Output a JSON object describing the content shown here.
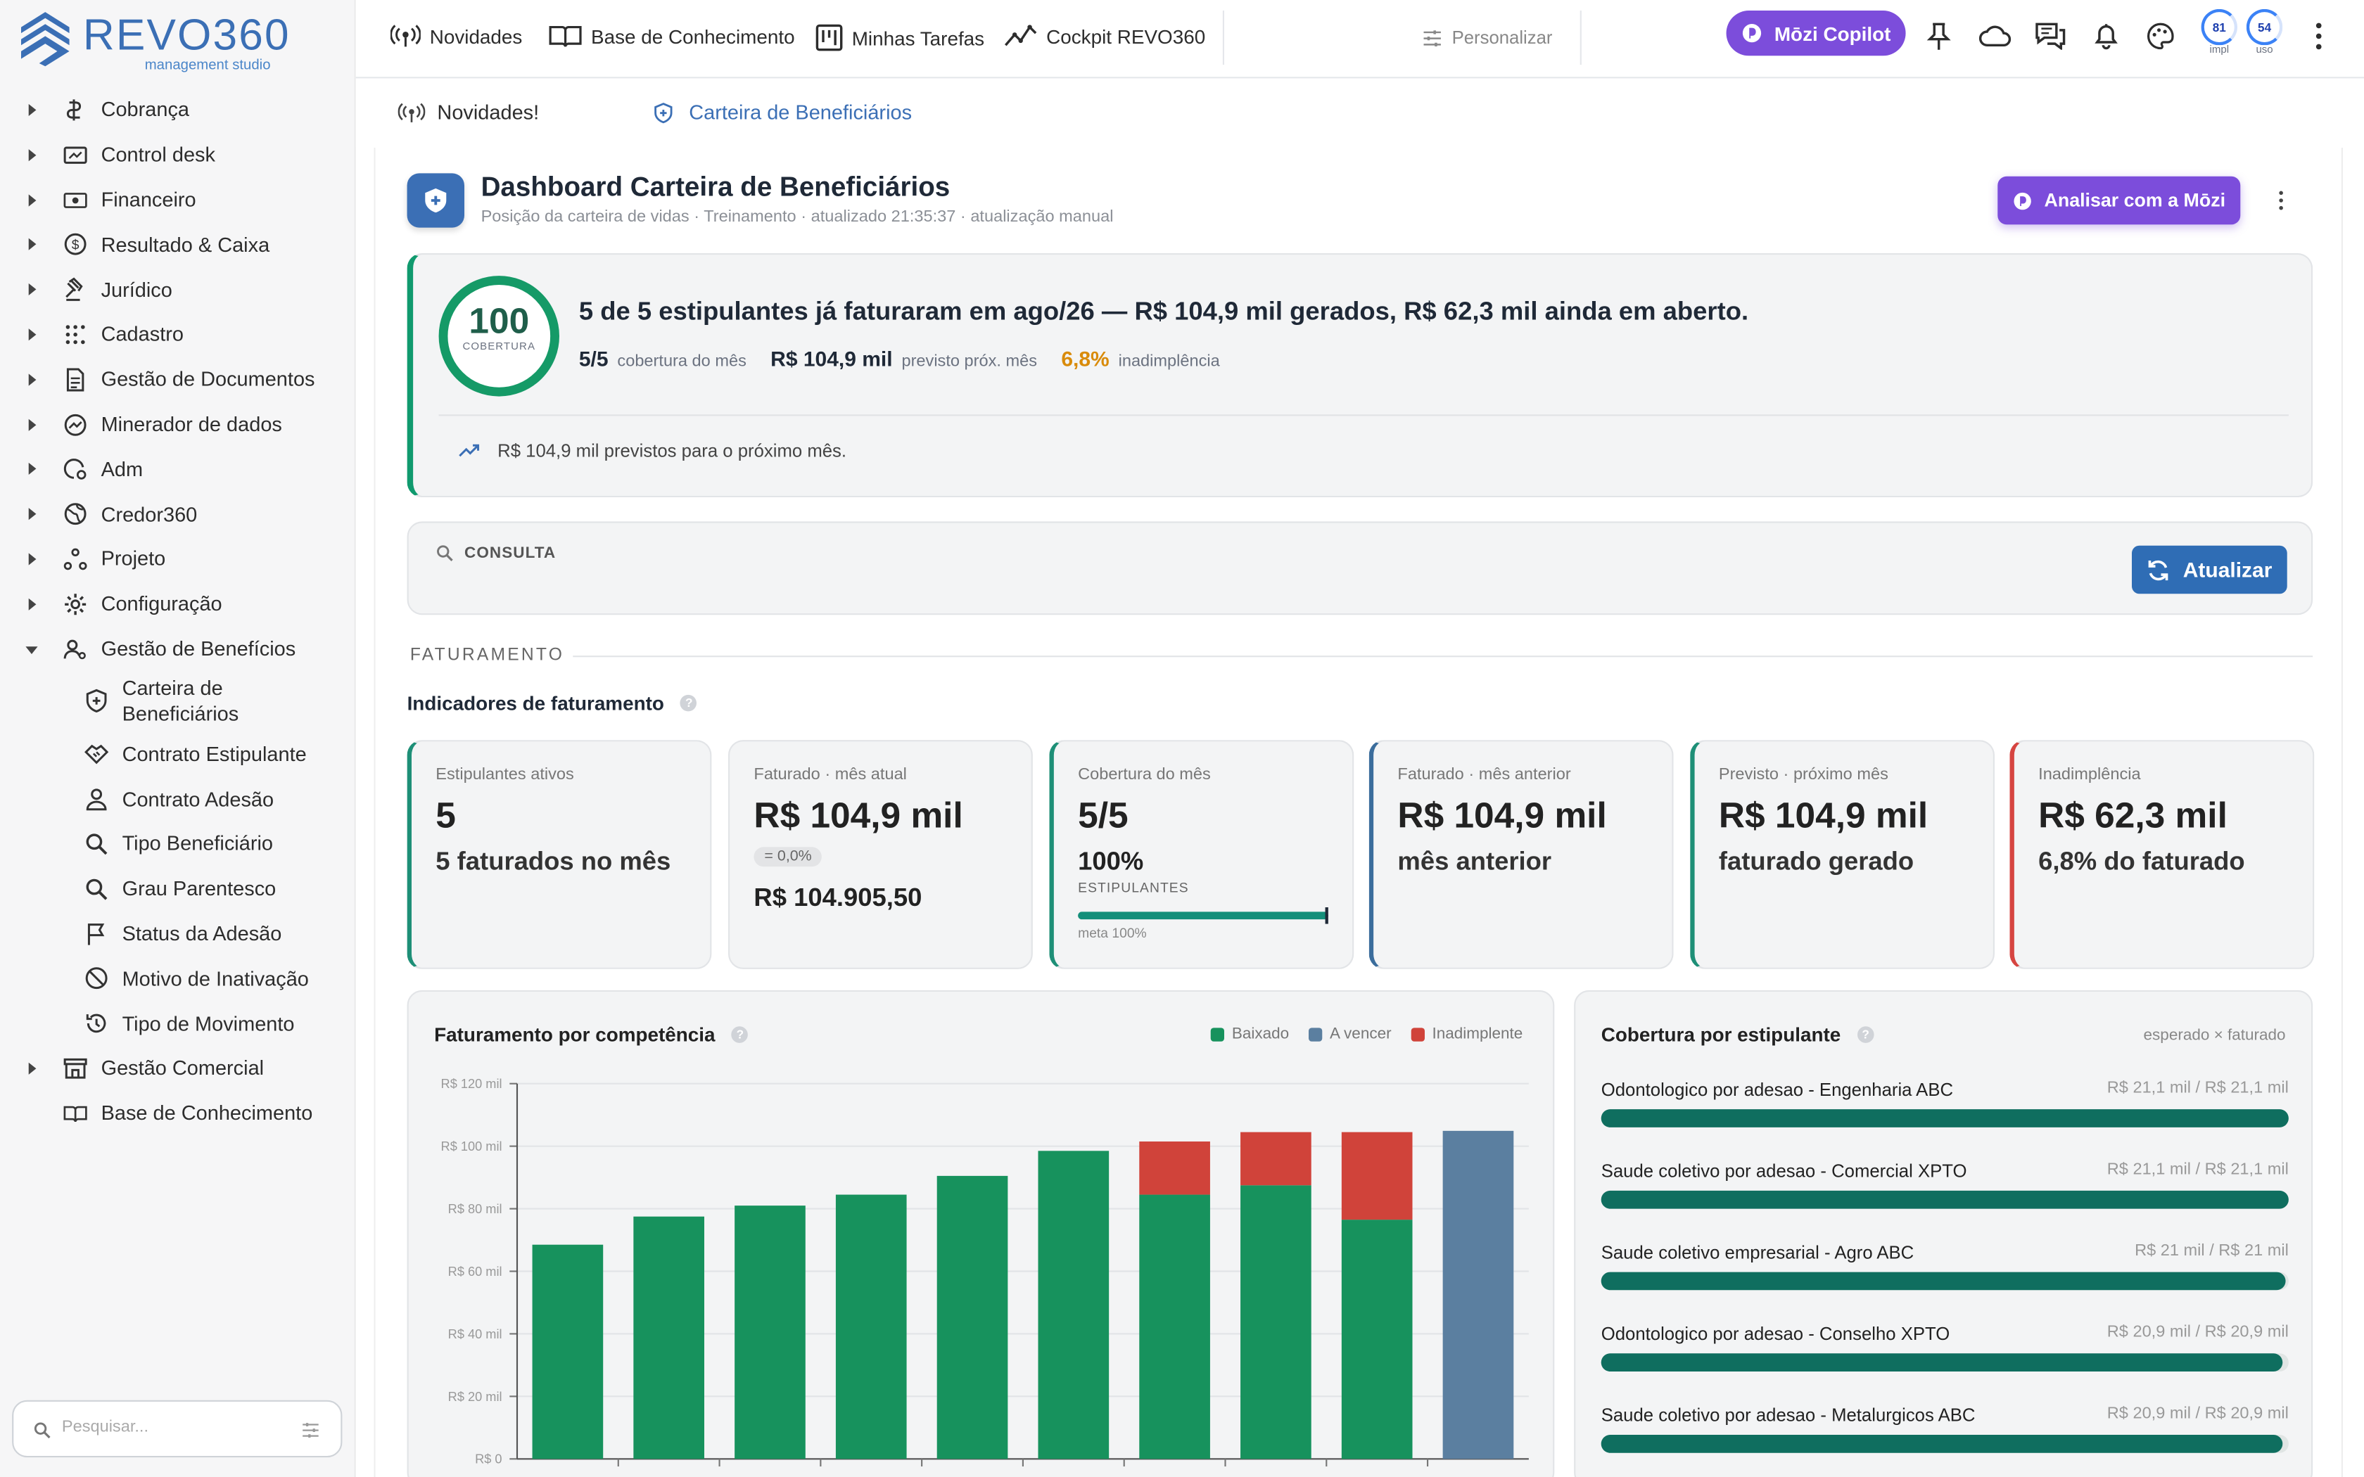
{
  "brand": {
    "name": "REVO360",
    "tagline": "management studio"
  },
  "sidebar": {
    "items": [
      {
        "label": "Cobrança"
      },
      {
        "label": "Control desk"
      },
      {
        "label": "Financeiro"
      },
      {
        "label": "Resultado & Caixa"
      },
      {
        "label": "Jurídico"
      },
      {
        "label": "Cadastro"
      },
      {
        "label": "Gestão de Documentos"
      },
      {
        "label": "Minerador de dados"
      },
      {
        "label": "Adm"
      },
      {
        "label": "Credor360"
      },
      {
        "label": "Projeto"
      },
      {
        "label": "Configuração"
      },
      {
        "label": "Gestão de Benefícios"
      },
      {
        "label": "Gestão Comercial"
      },
      {
        "label": "Base de Conhecimento"
      }
    ],
    "sub_items": [
      {
        "label": "Carteira de Beneficiários"
      },
      {
        "label": "Contrato Estipulante"
      },
      {
        "label": "Contrato Adesão"
      },
      {
        "label": "Tipo Beneficiário"
      },
      {
        "label": "Grau Parentesco"
      },
      {
        "label": "Status da Adesão"
      },
      {
        "label": "Motivo de Inativação"
      },
      {
        "label": "Tipo de Movimento"
      }
    ],
    "search_placeholder": "Pesquisar..."
  },
  "topbar": {
    "links": [
      "Novidades",
      "Base de Conhecimento",
      "Minhas Tarefas",
      "Cockpit REVO360"
    ],
    "personalize": "Personalizar",
    "copilot": "Mōzi Copilot",
    "gauges": [
      {
        "value": "81",
        "label": "impl"
      },
      {
        "value": "54",
        "label": "uso"
      }
    ]
  },
  "tabs": [
    {
      "label": "Novidades!"
    },
    {
      "label": "Carteira de Beneficiários"
    }
  ],
  "header": {
    "title": "Dashboard Carteira de Beneficiários",
    "subtitle": "Posição da carteira de vidas · Treinamento · atualizado 21:35:37 · atualização manual",
    "analyze_button": "Analisar com a Mōzi"
  },
  "hero": {
    "score": "100",
    "score_label": "COBERTURA",
    "headline": "5 de 5 estipulantes já faturaram em ago/26 — R$ 104,9 mil gerados, R$ 62,3 mil ainda em aberto.",
    "stat1_value": "5/5",
    "stat1_label": "cobertura do mês",
    "stat2_value": "R$ 104,9 mil",
    "stat2_label": "previsto próx. mês",
    "stat3_value": "6,8%",
    "stat3_label": "inadimplência",
    "footnote": "R$ 104,9 mil previstos para o próximo mês."
  },
  "consulta": {
    "label": "CONSULTA",
    "button": "Atualizar"
  },
  "section": {
    "title": "FATURAMENTO",
    "indicators_title": "Indicadores de faturamento"
  },
  "kpis": {
    "k1": {
      "label": "Estipulantes ativos",
      "value": "5",
      "sub": "5 faturados no mês"
    },
    "k2": {
      "label": "Faturado · mês atual",
      "value": "R$ 104,9 mil",
      "badge": "= 0,0%",
      "sub": "R$ 104.905,50"
    },
    "k3": {
      "label": "Cobertura do mês",
      "value": "5/5",
      "pct": "100%",
      "pct_label": "ESTIPULANTES",
      "meta": "meta 100%",
      "progress": 1.0
    },
    "k4": {
      "label": "Faturado · mês anterior",
      "value": "R$ 104,9 mil",
      "sub": "mês anterior"
    },
    "k5": {
      "label": "Previsto · próximo mês",
      "value": "R$ 104,9 mil",
      "sub": "faturado gerado"
    },
    "k6": {
      "label": "Inadimplência",
      "value": "R$ 62,3 mil",
      "sub": "6,8% do faturado"
    }
  },
  "chart_card": {
    "title": "Faturamento por competência"
  },
  "chart_data": {
    "type": "bar",
    "stacked": true,
    "title": "Faturamento por competência",
    "categories": [
      "",
      "",
      "",
      "",
      "",
      "",
      "",
      "",
      "",
      ""
    ],
    "series": [
      {
        "name": "Baixado",
        "color": "#17925d",
        "values": [
          68.5,
          77.5,
          81,
          84.5,
          90.5,
          98.5,
          84.5,
          87.5,
          76.5,
          0
        ]
      },
      {
        "name": "A vencer",
        "color": "#5b7fa0",
        "values": [
          0,
          0,
          0,
          0,
          0,
          0,
          0,
          0,
          0,
          104.9
        ]
      },
      {
        "name": "Inadimplente",
        "color": "#d0433a",
        "values": [
          0,
          0,
          0,
          0,
          0,
          0,
          17,
          17,
          28,
          0
        ]
      }
    ],
    "y_ticks": [
      "R$ 0",
      "R$ 20 mil",
      "R$ 40 mil",
      "R$ 60 mil",
      "R$ 80 mil",
      "R$ 100 mil",
      "R$ 120 mil"
    ],
    "ylim": [
      0,
      120
    ],
    "grid": true,
    "legend_position": "top-right"
  },
  "coverage": {
    "title": "Cobertura por estipulante",
    "note": "esperado × faturado",
    "rows": [
      {
        "name": "Odontologico por adesao - Engenharia ABC",
        "value": "R$ 21,1 mil / R$ 21,1 mil",
        "ratio": 1.0
      },
      {
        "name": "Saude coletivo por adesao - Comercial XPTO",
        "value": "R$ 21,1 mil / R$ 21,1 mil",
        "ratio": 1.0
      },
      {
        "name": "Saude coletivo empresarial - Agro ABC",
        "value": "R$ 21 mil / R$ 21 mil",
        "ratio": 0.995
      },
      {
        "name": "Odontologico por adesao - Conselho XPTO",
        "value": "R$ 20,9 mil / R$ 20,9 mil",
        "ratio": 0.991
      },
      {
        "name": "Saude coletivo por adesao - Metalurgicos ABC",
        "value": "R$ 20,9 mil / R$ 20,9 mil",
        "ratio": 0.991
      }
    ]
  },
  "colors": {
    "accent": "#7c4ddb",
    "primary": "#2f6db5",
    "success": "#17925d",
    "warning": "#d98b0a",
    "danger": "#d0433a"
  }
}
